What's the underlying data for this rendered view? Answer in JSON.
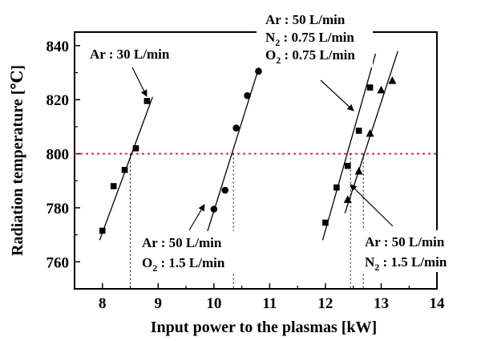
{
  "chart_data": {
    "type": "scatter",
    "xlabel": "Input power to the plasmas [kW]",
    "ylabel": "Radiation temperature [℃]",
    "xlim": [
      7.5,
      14
    ],
    "ylim": [
      750,
      845
    ],
    "xticks": [
      8,
      9,
      10,
      11,
      12,
      13,
      14
    ],
    "yticks": [
      760,
      780,
      800,
      820,
      840
    ],
    "grid": false,
    "reference_line": {
      "y": 800,
      "style": "dotted",
      "color": "#e03030"
    },
    "series": [
      {
        "id": "ar30",
        "marker": "square",
        "points": [
          [
            8.0,
            771.5
          ],
          [
            8.2,
            788
          ],
          [
            8.4,
            794
          ],
          [
            8.6,
            802
          ],
          [
            8.8,
            819.5
          ]
        ],
        "fit": [
          [
            7.95,
            768
          ],
          [
            8.9,
            821
          ]
        ],
        "crossing_x": 8.5
      },
      {
        "id": "ar50_o2",
        "marker": "circle",
        "points": [
          [
            10.0,
            779.5
          ],
          [
            10.2,
            786.5
          ],
          [
            10.4,
            809.5
          ],
          [
            10.6,
            821.5
          ],
          [
            10.8,
            830.5
          ]
        ],
        "fit": [
          [
            9.85,
            769
          ],
          [
            10.9,
            838
          ]
        ],
        "crossing_x": 10.35
      },
      {
        "id": "ar50_n2_o2",
        "marker": "square",
        "points": [
          [
            12.0,
            774.5
          ],
          [
            12.2,
            787.5
          ],
          [
            12.4,
            795.5
          ],
          [
            12.6,
            808.5
          ],
          [
            12.8,
            824.5
          ]
        ],
        "fit": [
          [
            11.95,
            768
          ],
          [
            12.9,
            837
          ]
        ],
        "crossing_x": 12.45
      },
      {
        "id": "ar50_n2",
        "marker": "triangle",
        "points": [
          [
            12.4,
            783
          ],
          [
            12.6,
            793.5
          ],
          [
            12.8,
            807.5
          ],
          [
            13.0,
            823.5
          ],
          [
            13.2,
            827
          ]
        ],
        "fit": [
          [
            12.35,
            778
          ],
          [
            13.3,
            838
          ]
        ],
        "crossing_x": 12.68
      }
    ],
    "annotations": [
      {
        "id": "ar30",
        "lines": [
          {
            "text": "Ar : 30 L/min"
          }
        ]
      },
      {
        "id": "ar50_o2",
        "lines": [
          {
            "text": "Ar : 50 L/min"
          },
          {
            "text": "O",
            "sub": "2",
            "rest": " : 1.5 L/min"
          }
        ]
      },
      {
        "id": "ar50_n2_o2",
        "lines": [
          {
            "text": "Ar : 50 L/min"
          },
          {
            "text": "N",
            "sub": "2",
            "rest": " : 0.75 L/min"
          },
          {
            "text": "O",
            "sub": "2",
            "rest": " : 0.75 L/min"
          }
        ]
      },
      {
        "id": "ar50_n2",
        "lines": [
          {
            "text": "Ar : 50 L/min"
          },
          {
            "text": "N",
            "sub": "2",
            "rest": " : 1.5 L/min"
          }
        ]
      }
    ]
  }
}
